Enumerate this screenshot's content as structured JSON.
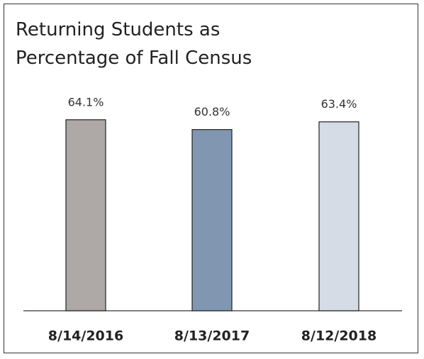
{
  "chart_data": {
    "type": "bar",
    "title": "Returning Students as Percentage of Fall Census",
    "categories": [
      "8/14/2016",
      "8/13/2017",
      "8/12/2018"
    ],
    "values": [
      64.1,
      60.8,
      63.4
    ],
    "value_labels": [
      "64.1%",
      "60.8%",
      "63.4%"
    ],
    "colors": [
      "#aea8a6",
      "#8196b1",
      "#d6dce6"
    ],
    "ylim": [
      0,
      100
    ]
  }
}
